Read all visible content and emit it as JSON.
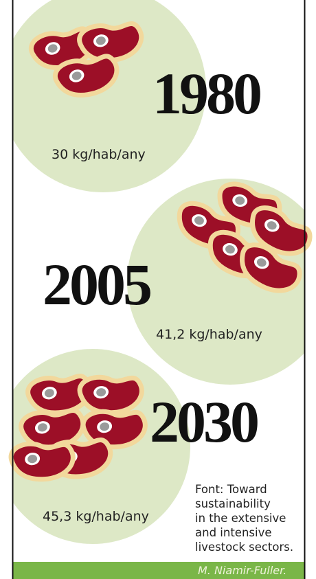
{
  "panels": [
    {
      "year": "1980",
      "label": "30 kg/hab/any"
    },
    {
      "year": "2005",
      "label": "41,2 kg/hab/any"
    },
    {
      "year": "2030",
      "label": "45,3 kg/hab/any"
    }
  ],
  "source": {
    "lines": [
      "Font: Toward",
      "sustainability",
      "in the extensive",
      "and intensive",
      "livestock sectors."
    ],
    "author": "M. Niamir-Fuller."
  }
}
